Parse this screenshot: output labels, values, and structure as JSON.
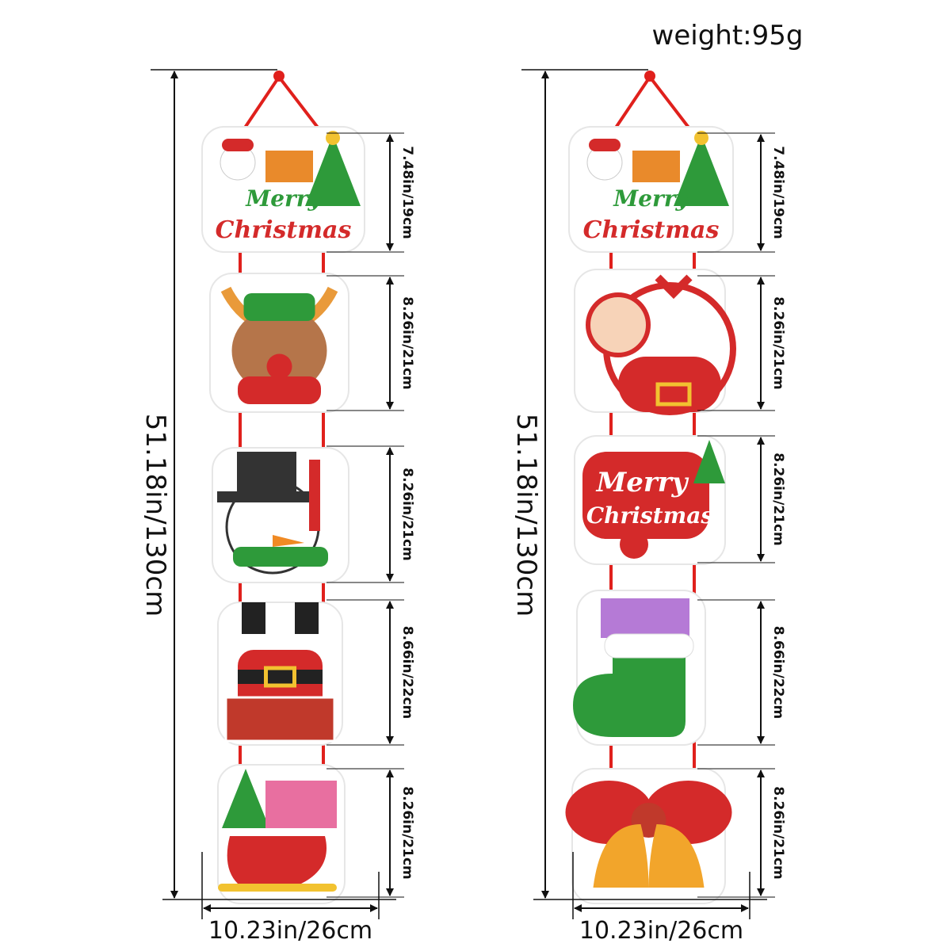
{
  "weight_label": "weight:95g",
  "panels": [
    {
      "total_height_label": "51.18in/130cm",
      "width_label": "10.23in/26cm",
      "segments": [
        {
          "label": "7.48in/19cm",
          "ornament": "snowman-tree-merry-christmas",
          "logo_text": "Merry Christmas"
        },
        {
          "label": "8.26in/21cm",
          "ornament": "reindeer"
        },
        {
          "label": "8.26in/21cm",
          "ornament": "snowman-top-hat"
        },
        {
          "label": "8.66in/22cm",
          "ornament": "santa-in-chimney"
        },
        {
          "label": "8.26in/21cm",
          "ornament": "sleigh-with-gifts"
        }
      ]
    },
    {
      "total_height_label": "51.18in/130cm",
      "width_label": "10.23in/26cm",
      "segments": [
        {
          "label": "7.48in/19cm",
          "ornament": "snowman-tree-merry-christmas",
          "logo_text": "Merry Christmas"
        },
        {
          "label": "8.26in/21cm",
          "ornament": "santa-with-sack"
        },
        {
          "label": "8.26in/21cm",
          "ornament": "merry-christmas-sign",
          "logo_text": "Merry Christmas"
        },
        {
          "label": "8.66in/22cm",
          "ornament": "stocking-with-gifts"
        },
        {
          "label": "8.26in/21cm",
          "ornament": "bow-and-bells"
        }
      ]
    }
  ],
  "colors": {
    "ribbon": "#e0201c",
    "dimension": "#111111",
    "red": "#d42a2a",
    "green": "#2e9a3a",
    "gold": "#f2c230"
  }
}
